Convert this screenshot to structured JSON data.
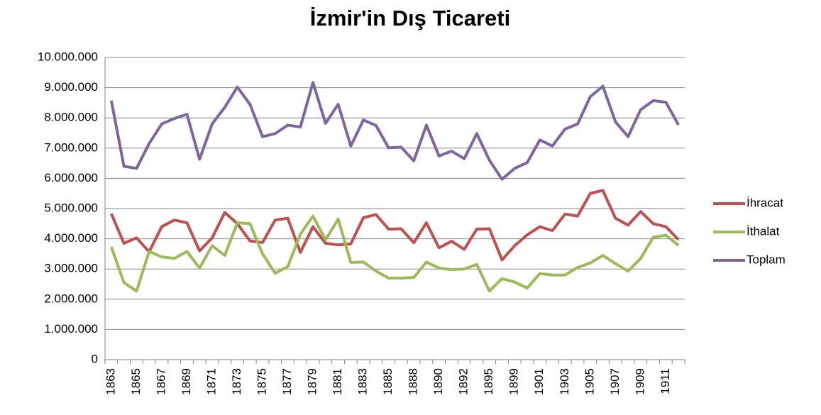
{
  "chart_data": {
    "type": "line",
    "title": "İzmir'in Dış Ticareti",
    "categories": [
      "1863",
      null,
      "1865",
      null,
      "1867",
      null,
      "1869",
      null,
      "1871",
      null,
      "1873",
      null,
      "1875",
      null,
      "1877",
      null,
      "1879",
      null,
      "1881",
      null,
      "1883",
      null,
      "1885",
      null,
      "1888",
      null,
      "1890",
      null,
      "1892",
      null,
      "1895",
      null,
      "1899",
      null,
      "1901",
      null,
      "1903",
      null,
      "1905",
      null,
      "1907",
      null,
      "1909",
      null,
      "1911",
      null
    ],
    "series": [
      {
        "name": "İhracat",
        "color": "#c0504d",
        "values": [
          4830000,
          3850000,
          4030000,
          3570000,
          4400000,
          4620000,
          4530000,
          3600000,
          4030000,
          4870000,
          4500000,
          3930000,
          3880000,
          4620000,
          4680000,
          3550000,
          4400000,
          3850000,
          3800000,
          3830000,
          4700000,
          4800000,
          4320000,
          4330000,
          3870000,
          4530000,
          3700000,
          3920000,
          3650000,
          4320000,
          4330000,
          3300000,
          3770000,
          4130000,
          4400000,
          4270000,
          4820000,
          4750000,
          5500000,
          5600000,
          4680000,
          4450000,
          4900000,
          4500000,
          4400000,
          3970000
        ]
      },
      {
        "name": "İthalat",
        "color": "#9bbb59",
        "values": [
          3730000,
          2550000,
          2270000,
          3580000,
          3400000,
          3350000,
          3580000,
          3030000,
          3770000,
          3450000,
          4530000,
          4500000,
          3500000,
          2860000,
          3080000,
          4150000,
          4750000,
          3970000,
          4650000,
          3220000,
          3230000,
          2930000,
          2700000,
          2700000,
          2720000,
          3230000,
          3030000,
          2980000,
          3000000,
          3150000,
          2270000,
          2680000,
          2570000,
          2370000,
          2850000,
          2800000,
          2800000,
          3050000,
          3200000,
          3450000,
          3180000,
          2930000,
          3350000,
          4050000,
          4120000,
          3780000
        ]
      },
      {
        "name": "Toplam",
        "color": "#8064a2",
        "values": [
          8570000,
          6400000,
          6330000,
          7150000,
          7800000,
          7980000,
          8120000,
          6630000,
          7800000,
          8350000,
          9020000,
          8450000,
          7380000,
          7480000,
          7760000,
          7700000,
          9170000,
          7820000,
          8450000,
          7070000,
          7930000,
          7750000,
          7010000,
          7030000,
          6580000,
          7760000,
          6740000,
          6900000,
          6650000,
          7480000,
          6600000,
          5970000,
          6330000,
          6520000,
          7270000,
          7070000,
          7630000,
          7800000,
          8700000,
          9050000,
          7870000,
          7380000,
          8270000,
          8570000,
          8520000,
          7770000
        ]
      }
    ],
    "ylim": [
      0,
      10000000
    ],
    "yticks": [
      0,
      {
        "value": 1000000,
        "label": "1.000.000"
      },
      {
        "value": 2000000,
        "label": "2.000.000"
      },
      {
        "value": 3000000,
        "label": "3.000.000"
      },
      {
        "value": 4000000,
        "label": "4.000.000"
      },
      {
        "value": 5000000,
        "label": "5.000.000"
      },
      {
        "value": 6000000,
        "label": "6.000.000"
      },
      {
        "value": 7000000,
        "label": "7.000.000"
      },
      {
        "value": 8000000,
        "label": "8.000.000"
      },
      {
        "value": 9000000,
        "label": "9.000.000"
      },
      {
        "value": 10000000,
        "label": "10.000.000"
      }
    ],
    "grid": true,
    "legend": "right"
  }
}
